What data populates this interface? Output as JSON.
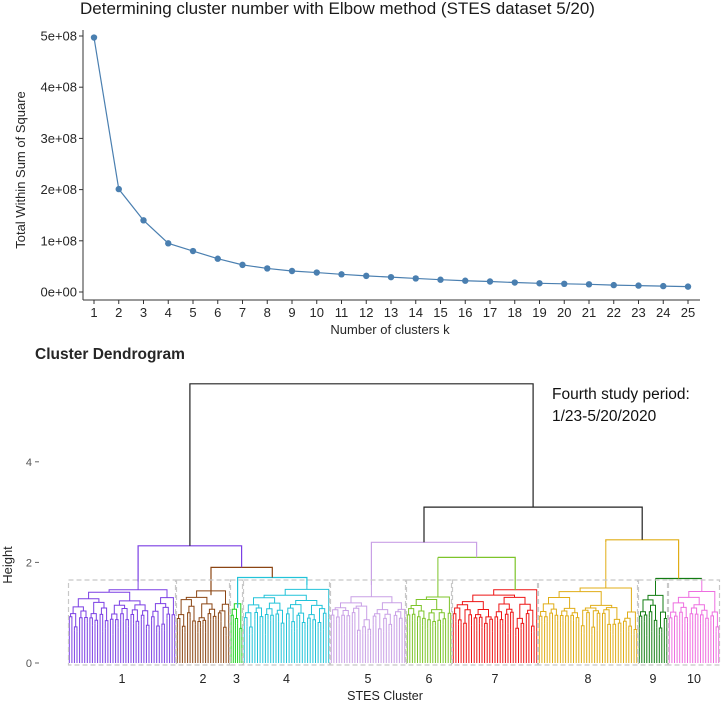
{
  "chart_data": [
    {
      "type": "line",
      "title": "Determining cluster number with Elbow method (STES dataset 5/20)",
      "xlabel": "Number of clusters k",
      "ylabel": "Total Within Sum of Square",
      "x": [
        1,
        2,
        3,
        4,
        5,
        6,
        7,
        8,
        9,
        10,
        11,
        12,
        13,
        14,
        15,
        16,
        17,
        18,
        19,
        20,
        21,
        22,
        23,
        24,
        25
      ],
      "y": [
        497000000,
        201000000,
        140000000,
        95000000,
        80000000,
        65000000,
        53000000,
        46000000,
        41000000,
        38000000,
        34500000,
        31500000,
        29000000,
        26500000,
        24000000,
        22000000,
        20500000,
        18500000,
        17000000,
        16000000,
        15000000,
        13500000,
        12500000,
        11500000,
        10500000
      ],
      "ylim": [
        0,
        500000000
      ],
      "yticks": [
        0,
        100000000,
        200000000,
        300000000,
        400000000,
        500000000
      ],
      "ytick_labels": [
        "0e+00",
        "1e+08",
        "2e+08",
        "3e+08",
        "4e+08",
        "5e+08"
      ],
      "xlim": [
        0.5,
        25.5
      ],
      "line_color": "#4a7fb0",
      "grid": false
    },
    {
      "type": "dendrogram",
      "title": "Cluster Dendrogram",
      "xlabel": "STES Cluster",
      "ylabel": "Height",
      "yticks": [
        0,
        2,
        4
      ],
      "ylim": [
        0,
        5.8
      ],
      "cut_height": 1.65,
      "annotation": "Fourth study period:\n1/23-5/20/2020",
      "clusters": [
        {
          "label": "1",
          "color": "#7b3fe4",
          "x_range": [
            0,
            108
          ],
          "merge_height": 1.62
        },
        {
          "label": "2",
          "color": "#8b4513",
          "x_range": [
            108,
            162
          ],
          "merge_height": 1.35
        },
        {
          "label": "3",
          "color": "#1fd11f",
          "x_range": [
            162,
            175
          ],
          "merge_height": 1.1
        },
        {
          "label": "4",
          "color": "#22c3d9",
          "x_range": [
            175,
            262
          ],
          "merge_height": 1.55
        },
        {
          "label": "5",
          "color": "#c9a0e6",
          "x_range": [
            262,
            338
          ],
          "merge_height": 1.55
        },
        {
          "label": "6",
          "color": "#7dc42a",
          "x_range": [
            338,
            384
          ],
          "merge_height": 2.1
        },
        {
          "label": "7",
          "color": "#ee1515",
          "x_range": [
            384,
            470
          ],
          "merge_height": 1.45
        },
        {
          "label": "8",
          "color": "#e0ad17",
          "x_range": [
            470,
            570
          ],
          "merge_height": 2.4
        },
        {
          "label": "9",
          "color": "#137d13",
          "x_range": [
            570,
            600
          ],
          "merge_height": 1.68
        },
        {
          "label": "10",
          "color": "#ee6ee0",
          "x_range": [
            600,
            652
          ],
          "merge_height": 1.68
        }
      ],
      "upper_merges": [
        {
          "left": "1",
          "right": "2-4",
          "height": 2.33
        },
        {
          "left": "2",
          "right": "3-4",
          "height": 1.9
        },
        {
          "left": "3",
          "right": "4",
          "height": 1.7
        },
        {
          "left": "5",
          "right": "6-7",
          "height": 2.4
        },
        {
          "left": "8",
          "right": "9-10",
          "height": 2.45
        },
        {
          "left": "5-7",
          "right": "8-10",
          "height": 3.1
        },
        {
          "left": "1-4",
          "right": "5-10",
          "height": 5.55
        }
      ]
    }
  ]
}
